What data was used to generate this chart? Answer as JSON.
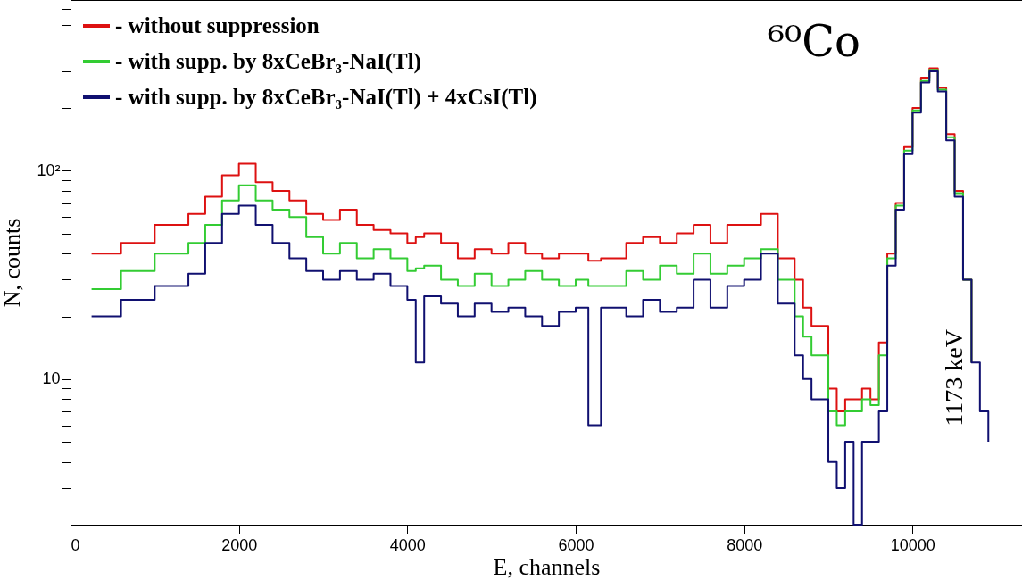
{
  "chart_data": {
    "type": "step",
    "xlabel": "E, channels",
    "ylabel": "N, counts",
    "log": "y",
    "legend": "top left",
    "xlim": [
      0,
      11300
    ],
    "xticks": [
      0,
      2000,
      4000,
      6000,
      8000,
      10000
    ],
    "ylim": [
      2,
      660
    ],
    "yticks": [
      {
        "value": 3,
        "label": null
      },
      {
        "value": 4,
        "label": null
      },
      {
        "value": 5,
        "label": null
      },
      {
        "value": 6,
        "label": null
      },
      {
        "value": 7,
        "label": null
      },
      {
        "value": 8,
        "label": null
      },
      {
        "value": 9,
        "label": null
      },
      10,
      {
        "value": 20,
        "label": null
      },
      {
        "value": 30,
        "label": null
      },
      {
        "value": 40,
        "label": null
      },
      {
        "value": 50,
        "label": null
      },
      {
        "value": 60,
        "label": null
      },
      {
        "value": 70,
        "label": null
      },
      {
        "value": 80,
        "label": null
      },
      {
        "value": 90,
        "label": null
      },
      {
        "value": 100,
        "label": "10²"
      },
      {
        "value": 200,
        "label": null
      },
      {
        "value": 300,
        "label": null
      },
      {
        "value": 400,
        "label": null
      },
      {
        "value": 500,
        "label": null
      },
      {
        "value": 600,
        "label": null
      }
    ],
    "annotations": [
      "⁶⁰Co",
      "1173 keV"
    ],
    "x": [
      250,
      600,
      1000,
      1400,
      1600,
      1800,
      2000,
      2200,
      2400,
      2600,
      2800,
      3000,
      3200,
      3400,
      3600,
      3800,
      4000,
      4100,
      4200,
      4400,
      4600,
      4800,
      5000,
      5200,
      5400,
      5600,
      5800,
      6000,
      6150,
      6300,
      6600,
      6800,
      7000,
      7200,
      7400,
      7600,
      7800,
      8000,
      8200,
      8400,
      8600,
      8700,
      8800,
      9000,
      9100,
      9200,
      9300,
      9400,
      9500,
      9600,
      9700,
      9800,
      9900,
      10000,
      10100,
      10200,
      10300,
      10400,
      10500,
      10600,
      10700,
      10800,
      10900
    ],
    "series": [
      {
        "name": "-  without suppression",
        "color": "#dd1111",
        "values": [
          40,
          45,
          55,
          62,
          75,
          95,
          108,
          88,
          80,
          72,
          62,
          58,
          65,
          55,
          52,
          50,
          45,
          48,
          50,
          45,
          38,
          42,
          40,
          45,
          40,
          38,
          40,
          40,
          37,
          38,
          45,
          48,
          45,
          50,
          55,
          45,
          55,
          55,
          62,
          38,
          30,
          22,
          18,
          9,
          7,
          8,
          8,
          9,
          8,
          15,
          40,
          70,
          130,
          200,
          280,
          310,
          250,
          150,
          80,
          30,
          12,
          null,
          null
        ]
      },
      {
        "name": "-  with supp. by 8xCeBr₃-NaI(Tl)",
        "color": "#33cc33",
        "values": [
          27,
          33,
          40,
          45,
          55,
          72,
          85,
          72,
          65,
          60,
          48,
          40,
          45,
          38,
          42,
          38,
          33,
          34,
          35,
          30,
          28,
          32,
          28,
          30,
          33,
          30,
          28,
          30,
          28,
          28,
          33,
          30,
          35,
          32,
          40,
          32,
          35,
          38,
          42,
          30,
          20,
          16,
          13,
          7,
          6,
          7,
          7,
          8,
          7.5,
          13,
          38,
          68,
          125,
          195,
          270,
          305,
          245,
          145,
          78,
          30,
          12,
          null,
          null
        ]
      },
      {
        "name": "-  with supp. by 8xCeBr₃-NaI(Tl) + 4xCsI(Tl)",
        "color": "#101070",
        "values": [
          20,
          24,
          28,
          32,
          45,
          62,
          68,
          55,
          45,
          38,
          33,
          30,
          33,
          30,
          32,
          28,
          24,
          12,
          25,
          23,
          20,
          23,
          21,
          22,
          20,
          18,
          21,
          22,
          6,
          22,
          20,
          24,
          21,
          22,
          30,
          22,
          28,
          30,
          40,
          23,
          13,
          10,
          8,
          4,
          3,
          5,
          2,
          5,
          5,
          7,
          35,
          65,
          120,
          190,
          265,
          300,
          240,
          140,
          75,
          30,
          12,
          7,
          5
        ]
      }
    ]
  }
}
